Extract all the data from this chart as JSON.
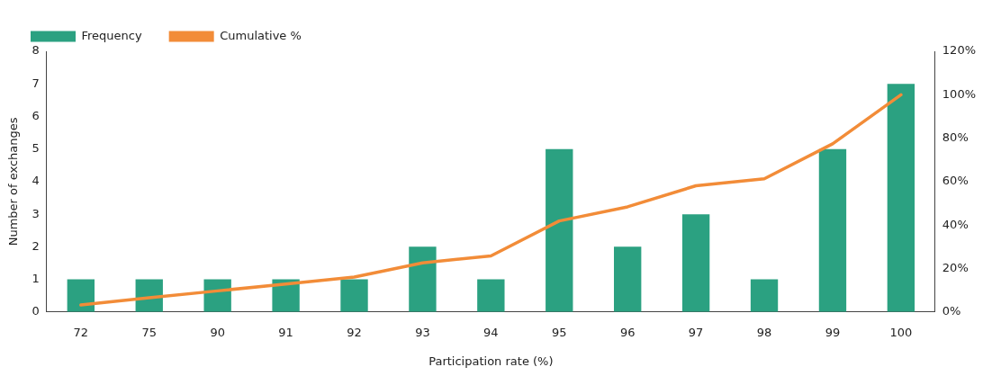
{
  "chart_data": {
    "type": "bar",
    "xlabel": "Participation rate (%)",
    "ylabel": "Number of exchanges",
    "categories": [
      "72",
      "75",
      "90",
      "91",
      "92",
      "93",
      "94",
      "95",
      "96",
      "97",
      "98",
      "99",
      "100"
    ],
    "series": [
      {
        "name": "Frequency",
        "color": "#2ba181",
        "values": [
          1,
          1,
          1,
          1,
          1,
          2,
          1,
          5,
          2,
          3,
          1,
          5,
          7
        ]
      },
      {
        "name": "Cumulative %",
        "type": "line",
        "axis": "y2",
        "color": "#f28c38",
        "values": [
          3.2,
          6.5,
          9.7,
          12.9,
          16.1,
          22.6,
          25.8,
          41.9,
          48.4,
          58.1,
          61.3,
          77.4,
          100
        ]
      }
    ],
    "ylim": [
      0,
      8
    ],
    "yticks": [
      0,
      1,
      2,
      3,
      4,
      5,
      6,
      7,
      8
    ],
    "y2lim": [
      0,
      120
    ],
    "y2ticks": [
      {
        "value": 0,
        "label": "0%"
      },
      {
        "value": 20,
        "label": "20%"
      },
      {
        "value": 40,
        "label": "40%"
      },
      {
        "value": 60,
        "label": "60%"
      },
      {
        "value": 80,
        "label": "80%"
      },
      {
        "value": 100,
        "label": "100%"
      },
      {
        "value": 120,
        "label": "120%"
      }
    ],
    "grid": false,
    "legend": "top left",
    "marker": "none",
    "line_style": "solid"
  }
}
